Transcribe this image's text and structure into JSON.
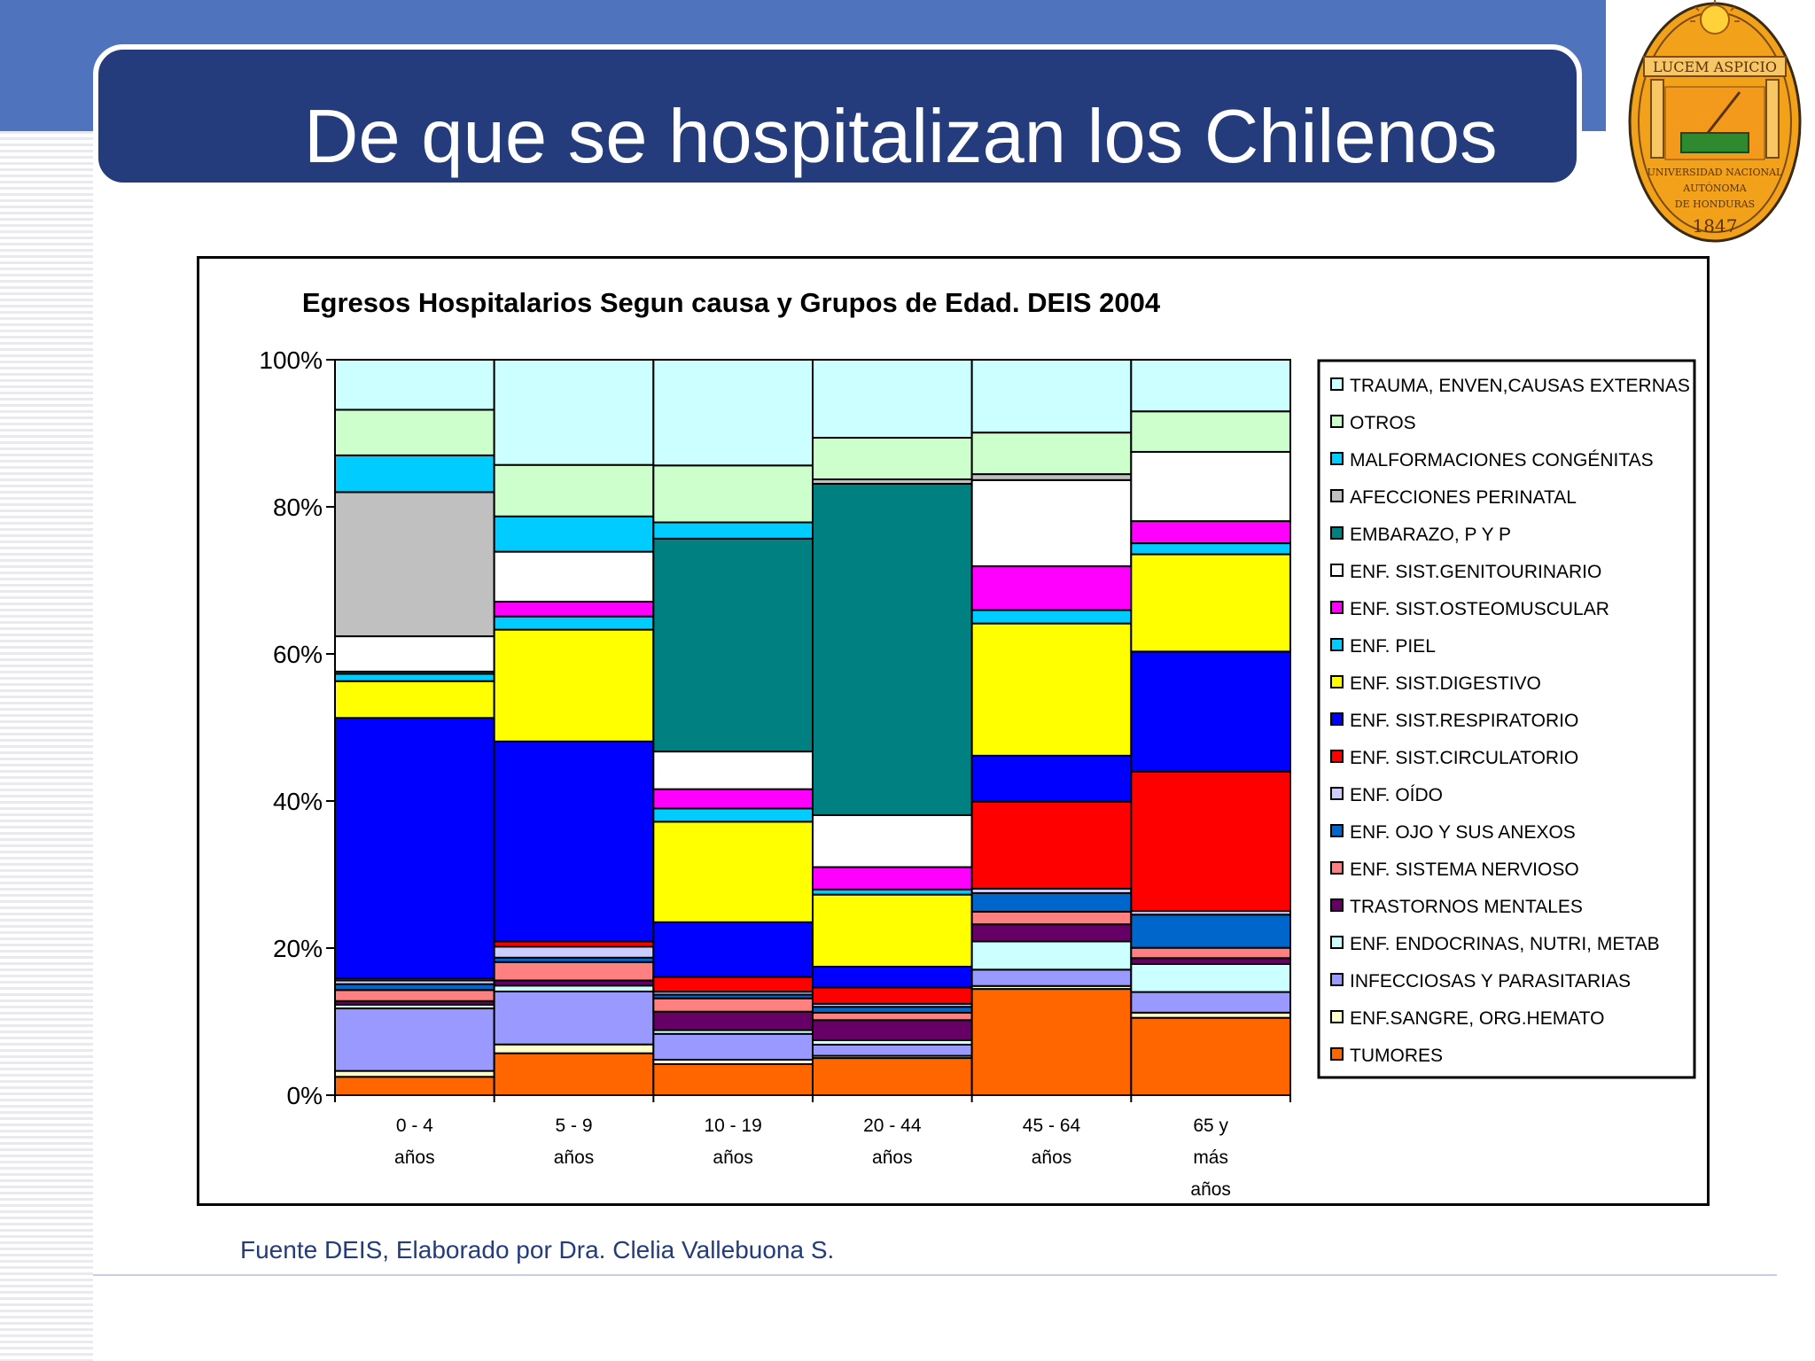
{
  "slide": {
    "title": "De que se hospitalizan los Chilenos",
    "source": "Fuente DEIS, Elaborado por Dra. Clelia Vallebuona S."
  },
  "seal": {
    "motto": "LUCEM ASPICIO",
    "line1": "UNIVERSIDAD NACIONAL",
    "line2": "AUTÓNOMA",
    "line3": "DE HONDURAS",
    "year": "1847"
  },
  "chart_data": {
    "type": "bar",
    "stacked": "percent",
    "title": "Egresos Hospitalarios Segun causa y Grupos de Edad. DEIS 2004",
    "ylim": [
      0,
      100
    ],
    "yticks": [
      "0%",
      "20%",
      "40%",
      "60%",
      "80%",
      "100%"
    ],
    "legend_position": "right",
    "categories": [
      [
        "0 - 4",
        "años"
      ],
      [
        "5 - 9",
        "años"
      ],
      [
        "10 - 19",
        "años"
      ],
      [
        "20 - 44",
        "años"
      ],
      [
        "45 - 64",
        "años"
      ],
      [
        "65 y",
        "más",
        "años"
      ]
    ],
    "series": [
      {
        "name": "TUMORES",
        "color": "#ff6600",
        "values": [
          2.5,
          5.7,
          4.2,
          5.0,
          14.3,
          10.5
        ]
      },
      {
        "name": "ENF.SANGRE, ORG.HEMATO",
        "color": "#ffffcc",
        "values": [
          0.8,
          1.2,
          0.6,
          0.3,
          0.4,
          0.7
        ]
      },
      {
        "name": "INFECCIOSAS Y PARASITARIAS",
        "color": "#9999ff",
        "values": [
          8.5,
          7.2,
          3.5,
          1.5,
          2.2,
          2.8
        ]
      },
      {
        "name": "ENF. ENDOCRINAS, NUTRI, METAB",
        "color": "#ccffff",
        "values": [
          0.5,
          0.8,
          0.5,
          0.6,
          3.8,
          3.8
        ]
      },
      {
        "name": "TRASTORNOS MENTALES",
        "color": "#660066",
        "values": [
          0.5,
          0.7,
          2.5,
          2.7,
          2.3,
          0.8
        ]
      },
      {
        "name": "ENF. SISTEMA NERVIOSO",
        "color": "#ff8080",
        "values": [
          1.5,
          2.5,
          1.8,
          1.0,
          1.7,
          1.4
        ]
      },
      {
        "name": "ENF. OJO Y SUS ANEXOS",
        "color": "#0066cc",
        "values": [
          0.8,
          0.6,
          0.5,
          0.8,
          2.5,
          4.5
        ]
      },
      {
        "name": "ENF. OÍDO",
        "color": "#ccccff",
        "values": [
          0.5,
          1.5,
          0.4,
          0.4,
          0.6,
          0.5
        ]
      },
      {
        "name": "ENF. SIST.CIRCULATORIO",
        "color": "#ff0000",
        "values": [
          0.3,
          0.7,
          2.0,
          2.2,
          11.7,
          18.9
        ]
      },
      {
        "name": "ENF. SIST.RESPIRATORIO",
        "color": "#0000ff",
        "values": [
          35.4,
          27.2,
          7.4,
          2.8,
          6.2,
          16.3
        ]
      },
      {
        "name": "ENF. SIST.DIGESTIVO",
        "color": "#ffff00",
        "values": [
          5.0,
          15.2,
          13.6,
          9.7,
          17.8,
          13.2
        ]
      },
      {
        "name": "ENF. PIEL",
        "color": "#00ccff",
        "values": [
          1.0,
          1.8,
          1.8,
          0.7,
          1.8,
          1.5
        ]
      },
      {
        "name": "ENF. SIST.OSTEOMUSCULAR",
        "color": "#ff00ff",
        "values": [
          0.3,
          2.0,
          2.6,
          3.0,
          5.9,
          3.0
        ]
      },
      {
        "name": "ENF. SIST.GENITOURINARIO",
        "color": "#ffffff",
        "values": [
          4.8,
          6.8,
          5.1,
          7.0,
          11.6,
          9.4
        ]
      },
      {
        "name": "EMBARAZO, P Y P",
        "color": "#008080",
        "values": [
          0.0,
          0.0,
          28.8,
          44.6,
          0.0,
          0.0
        ]
      },
      {
        "name": "AFECCIONES PERINATAL",
        "color": "#c0c0c0",
        "values": [
          19.6,
          0.0,
          0.0,
          0.6,
          0.8,
          0.0
        ]
      },
      {
        "name": "MALFORMACIONES CONGÉNITAS",
        "color": "#00ccff",
        "values": [
          5.0,
          4.8,
          2.2,
          0.0,
          0.0,
          0.0
        ]
      },
      {
        "name": "OTROS",
        "color": "#ccffcc",
        "values": [
          6.2,
          7.0,
          7.7,
          5.6,
          5.6,
          5.5
        ]
      },
      {
        "name": "TRAUMA, ENVEN,CAUSAS EXTERNAS",
        "color": "#ccffff",
        "values": [
          6.8,
          14.3,
          14.3,
          10.5,
          9.8,
          7.0
        ]
      }
    ]
  }
}
